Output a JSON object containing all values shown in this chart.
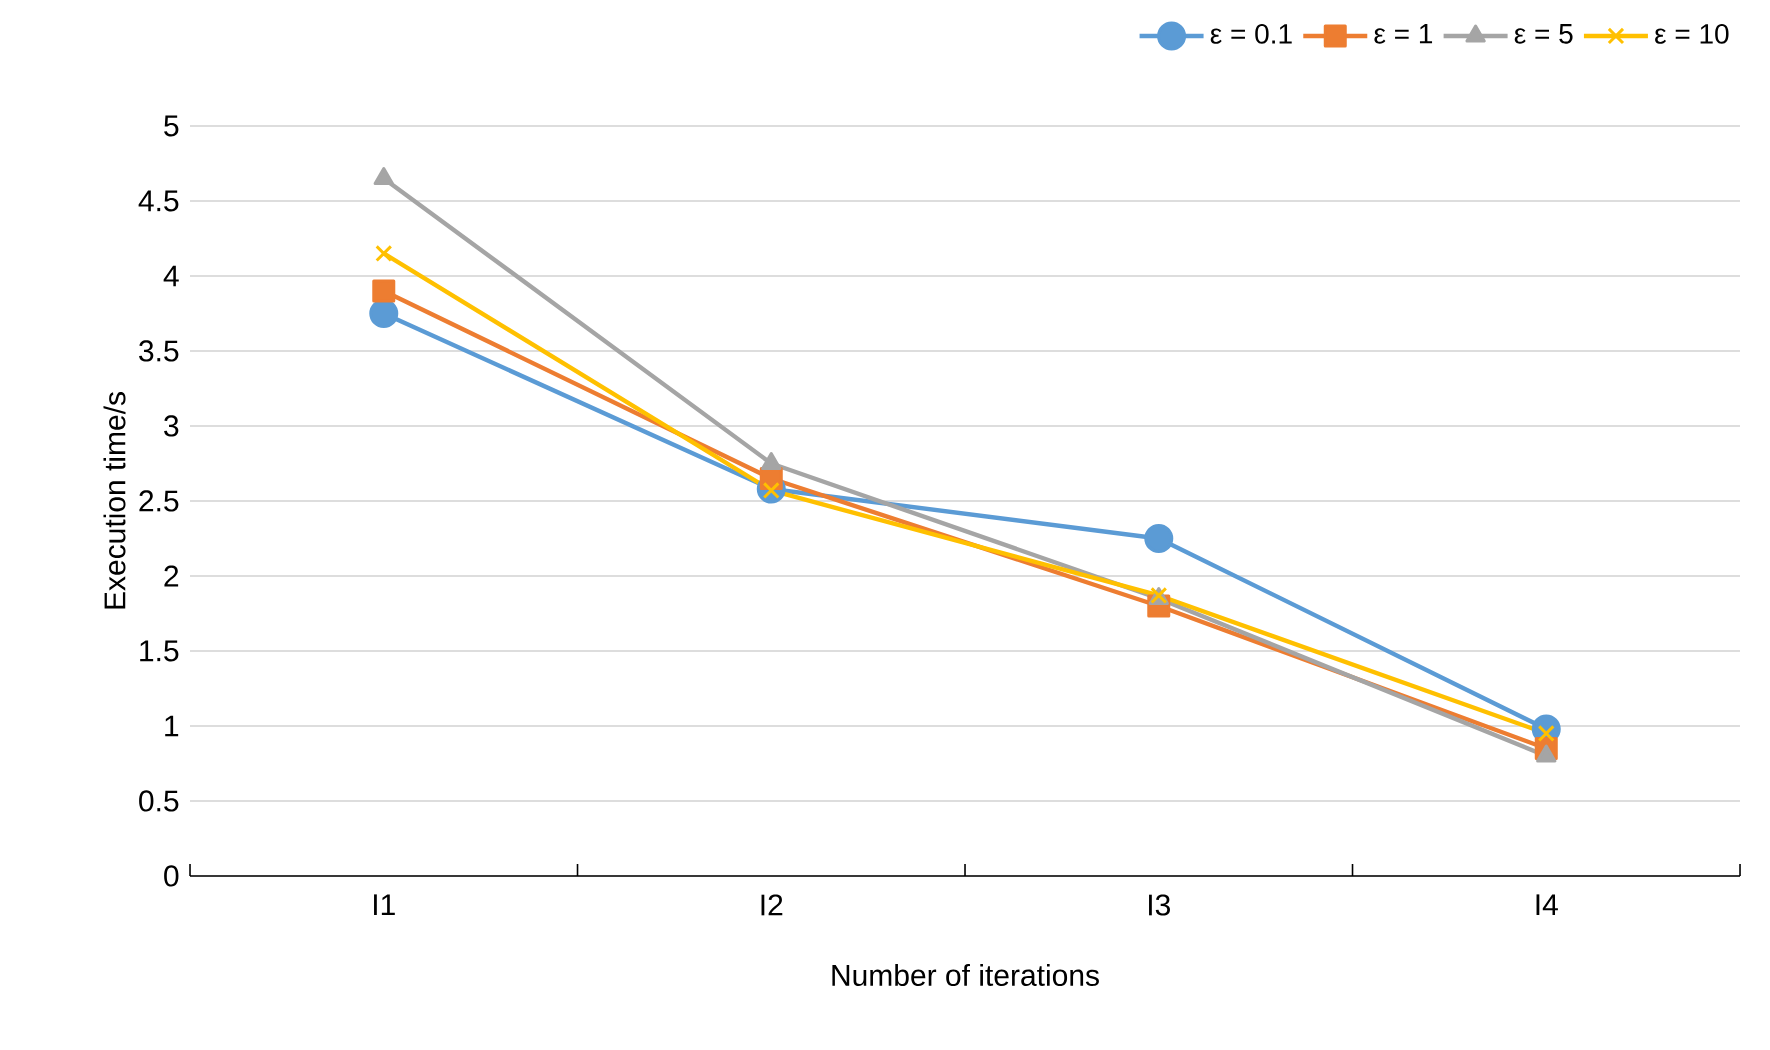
{
  "chart_data": {
    "type": "line",
    "xlabel": "Number of iterations",
    "ylabel": "Execution time/s",
    "categories": [
      "I1",
      "I2",
      "I3",
      "I4"
    ],
    "ylim": [
      0,
      5
    ],
    "yticks": [
      0,
      0.5,
      1,
      1.5,
      2,
      2.5,
      3,
      3.5,
      4,
      4.5,
      5
    ],
    "grid": "y",
    "legend": "top right",
    "line_style": "solid",
    "series": [
      {
        "name": "ε = 0.1",
        "color": "#5b9bd5",
        "marker": "circle",
        "values": [
          3.75,
          2.58,
          2.25,
          0.98
        ]
      },
      {
        "name": "ε = 1",
        "color": "#ed7d31",
        "marker": "square",
        "values": [
          3.9,
          2.65,
          1.8,
          0.85
        ]
      },
      {
        "name": "ε = 5",
        "color": "#a5a5a5",
        "marker": "triangle",
        "values": [
          4.65,
          2.75,
          1.85,
          0.8
        ]
      },
      {
        "name": "ε = 10",
        "color": "#ffc000",
        "marker": "cross",
        "values": [
          4.15,
          2.57,
          1.87,
          0.95
        ]
      }
    ]
  }
}
